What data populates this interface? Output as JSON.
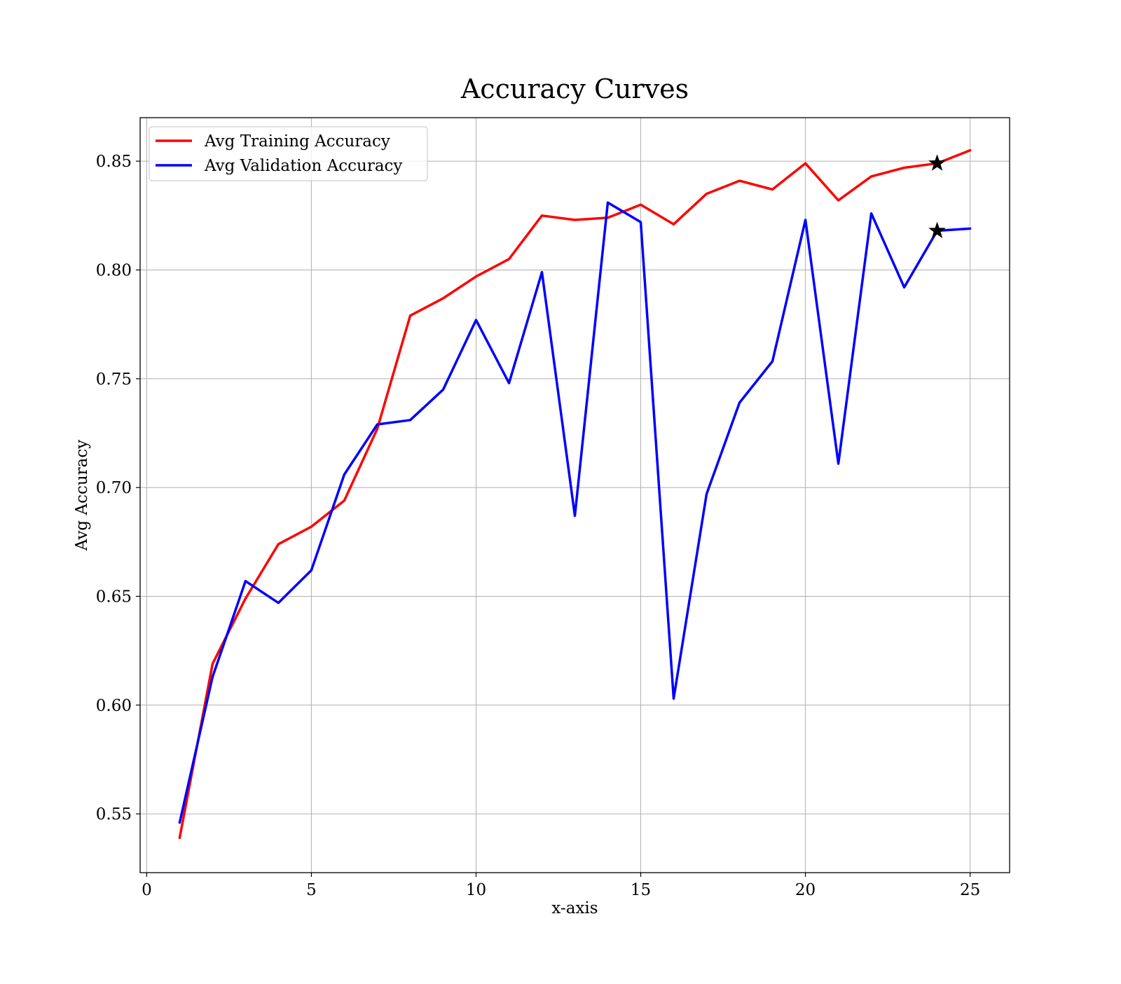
{
  "chart_data": {
    "type": "line",
    "title": "Accuracy Curves",
    "xlabel": "x-axis",
    "ylabel": "Avg Accuracy",
    "xlim": [
      -0.2,
      26.2
    ],
    "ylim": [
      0.523,
      0.87
    ],
    "xticks": [
      0,
      5,
      10,
      15,
      20,
      25
    ],
    "xtick_labels": [
      "0",
      "5",
      "10",
      "15",
      "20",
      "25"
    ],
    "yticks": [
      0.55,
      0.6,
      0.65,
      0.7,
      0.75,
      0.8,
      0.85
    ],
    "ytick_labels": [
      "0.55",
      "0.60",
      "0.65",
      "0.70",
      "0.75",
      "0.80",
      "0.85"
    ],
    "grid": true,
    "legend_position": "top-left",
    "x": [
      1,
      2,
      3,
      4,
      5,
      6,
      7,
      8,
      9,
      10,
      11,
      12,
      13,
      14,
      15,
      16,
      17,
      18,
      19,
      20,
      21,
      22,
      23,
      24,
      25
    ],
    "series": [
      {
        "name": "Avg Training Accuracy",
        "color": "#ff0000",
        "values": [
          0.539,
          0.619,
          0.649,
          0.674,
          0.682,
          0.694,
          0.727,
          0.779,
          0.787,
          0.797,
          0.805,
          0.825,
          0.823,
          0.824,
          0.83,
          0.821,
          0.835,
          0.841,
          0.837,
          0.849,
          0.832,
          0.843,
          0.847,
          0.849,
          0.855
        ]
      },
      {
        "name": "Avg Validation Accuracy",
        "color": "#0000ff",
        "values": [
          0.546,
          0.613,
          0.657,
          0.647,
          0.662,
          0.706,
          0.729,
          0.731,
          0.745,
          0.777,
          0.748,
          0.799,
          0.687,
          0.831,
          0.822,
          0.603,
          0.697,
          0.739,
          0.758,
          0.823,
          0.711,
          0.826,
          0.792,
          0.818,
          0.819
        ]
      }
    ],
    "markers": [
      {
        "x": 24,
        "y": 0.849,
        "symbol": "star",
        "color": "#000000"
      },
      {
        "x": 24,
        "y": 0.818,
        "symbol": "star",
        "color": "#000000"
      }
    ]
  }
}
